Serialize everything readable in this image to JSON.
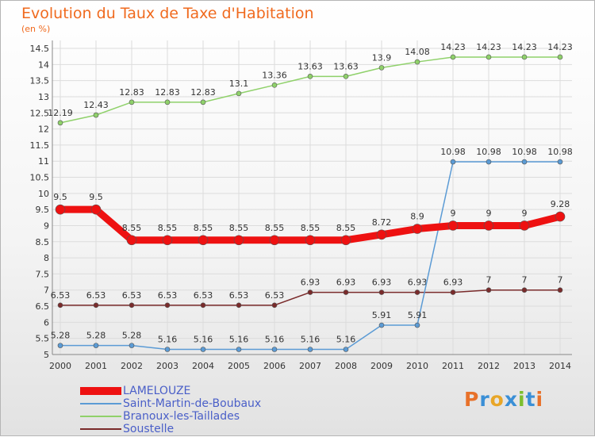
{
  "title": "Evolution du Taux de Taxe d'Habitation",
  "subtitle": "(en %)",
  "logo": {
    "letters": [
      {
        "char": "P",
        "color": "#e8712a"
      },
      {
        "char": "r",
        "color": "#3a8fd6"
      },
      {
        "char": "o",
        "color": "#e8a628"
      },
      {
        "char": "x",
        "color": "#3a8fd6"
      },
      {
        "char": "i",
        "color": "#7cbf2e"
      },
      {
        "char": "t",
        "color": "#3a8fd6"
      },
      {
        "char": "i",
        "color": "#e8712a"
      }
    ]
  },
  "chart_data": {
    "type": "line",
    "x": [
      2000,
      2001,
      2002,
      2003,
      2004,
      2005,
      2006,
      2007,
      2008,
      2009,
      2010,
      2011,
      2012,
      2013,
      2014
    ],
    "ylim": [
      5,
      14.5
    ],
    "yticks": [
      "5",
      "5.5",
      "6",
      "6.5",
      "7",
      "7.5",
      "8",
      "8.5",
      "9",
      "9.5",
      "10",
      "10.5",
      "11",
      "11.5",
      "12",
      "12.5",
      "13",
      "13.5",
      "14",
      "14.5"
    ],
    "grid": true,
    "legend_position": "bottom-left",
    "series": [
      {
        "name": "LAMELOUZE",
        "color": "#ee1111",
        "line_width": 9,
        "marker_r": 6,
        "values": [
          9.5,
          9.5,
          8.55,
          8.55,
          8.55,
          8.55,
          8.55,
          8.55,
          8.55,
          8.72,
          8.9,
          9,
          9,
          9,
          9.28
        ],
        "labels": [
          "9.5",
          "9.5",
          "8.55",
          "8.55",
          "8.55",
          "8.55",
          "8.55",
          "8.55",
          "8.55",
          "8.72",
          "8.9",
          "9",
          "9",
          "9",
          "9.28"
        ]
      },
      {
        "name": "Saint-Martin-de-Boubaux",
        "color": "#5b9bd5",
        "line_width": 1.5,
        "marker_r": 3,
        "values": [
          5.28,
          5.28,
          5.28,
          5.16,
          5.16,
          5.16,
          5.16,
          5.16,
          5.16,
          5.91,
          5.91,
          10.98,
          10.98,
          10.98,
          10.98
        ],
        "labels": [
          "5.28",
          "5.28",
          "5.28",
          "5.16",
          "5.16",
          "5.16",
          "5.16",
          "5.16",
          "5.16",
          "5.91",
          "5.91",
          "10.98",
          "10.98",
          "10.98",
          "10.98"
        ]
      },
      {
        "name": "Branoux-les-Taillades",
        "color": "#8fd16a",
        "line_width": 1.5,
        "marker_r": 3,
        "values": [
          12.19,
          12.43,
          12.83,
          12.83,
          12.83,
          13.1,
          13.36,
          13.63,
          13.63,
          13.9,
          14.08,
          14.23,
          14.23,
          14.23,
          14.23
        ],
        "labels": [
          "12.19",
          "12.43",
          "12.83",
          "12.83",
          "12.83",
          "13.1",
          "13.36",
          "13.63",
          "13.63",
          "13.9",
          "14.08",
          "14.23",
          "14.23",
          "14.23",
          "14.23"
        ]
      },
      {
        "name": "Soustelle",
        "color": "#7a2b2b",
        "line_width": 1.5,
        "marker_r": 3,
        "values": [
          6.53,
          6.53,
          6.53,
          6.53,
          6.53,
          6.53,
          6.53,
          6.93,
          6.93,
          6.93,
          6.93,
          6.93,
          7,
          7,
          7
        ],
        "labels": [
          "6.53",
          "6.53",
          "6.53",
          "6.53",
          "6.53",
          "6.53",
          "6.53",
          "6.93",
          "6.93",
          "6.93",
          "6.93",
          "6.93",
          "7",
          "7",
          "7"
        ]
      }
    ]
  }
}
